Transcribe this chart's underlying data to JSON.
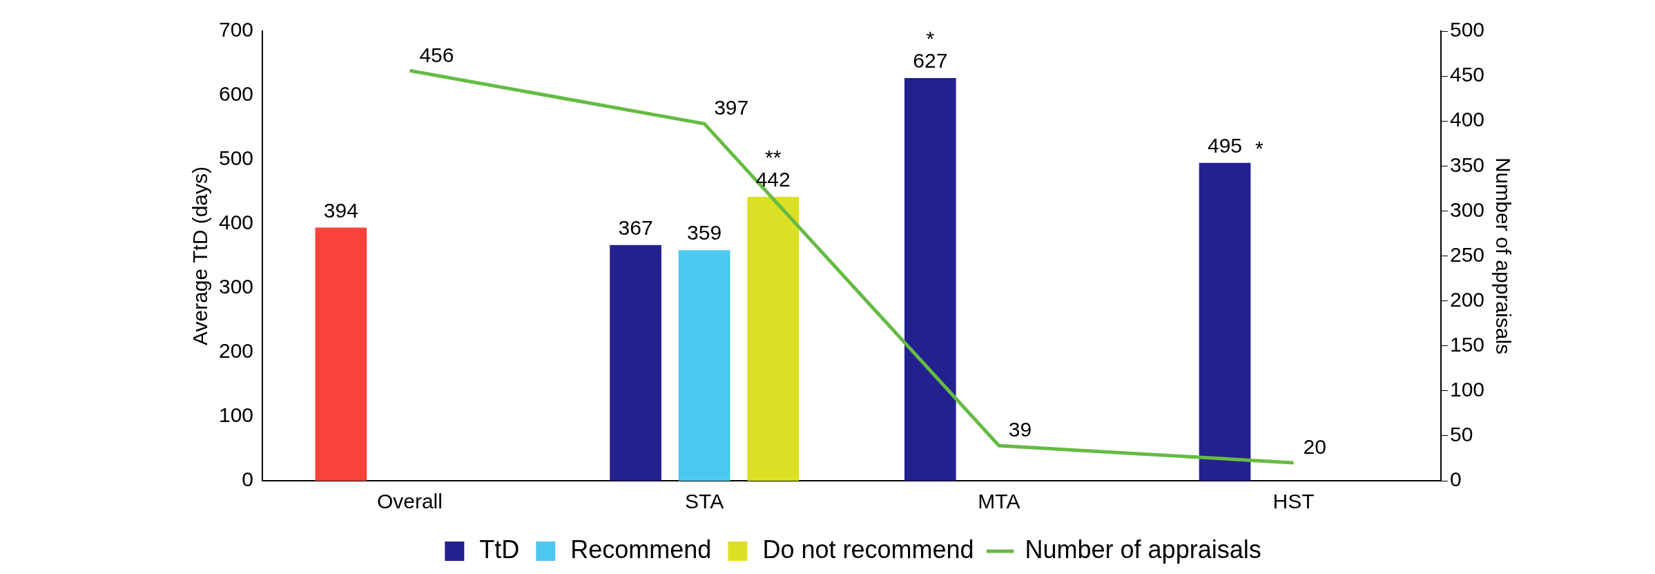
{
  "chart_data": {
    "type": "bar",
    "categories": [
      "Overall",
      "STA",
      "MTA",
      "HST"
    ],
    "series": [
      {
        "name": "TtD",
        "color": "#23208f",
        "colors": [
          "#f9423a",
          "#23208f",
          "#23208f",
          "#23208f"
        ],
        "values": [
          394,
          367,
          627,
          495
        ]
      },
      {
        "name": "Recommend",
        "color": "#4dc8f0",
        "values": [
          null,
          359,
          null,
          null
        ]
      },
      {
        "name": "Do not recommend",
        "color": "#dce024",
        "values": [
          null,
          442,
          null,
          null
        ]
      },
      {
        "name": "Number of appraisals",
        "type": "line",
        "axis": "y2",
        "color": "#66bb44",
        "values": [
          456,
          397,
          39,
          20
        ]
      }
    ],
    "ylabel": "Average TtD (days)",
    "y2label": "Number of appraisals",
    "ylim": [
      0,
      700
    ],
    "yticks": [
      0,
      100,
      200,
      300,
      400,
      500,
      600,
      700
    ],
    "y2lim": [
      0,
      500
    ],
    "y2ticks": [
      0,
      50,
      100,
      150,
      200,
      250,
      300,
      350,
      400,
      450,
      500
    ],
    "annotations": [
      "*",
      "**",
      "*"
    ],
    "data_labels": true,
    "grid": false,
    "legend": "bottom",
    "marker": "none"
  }
}
